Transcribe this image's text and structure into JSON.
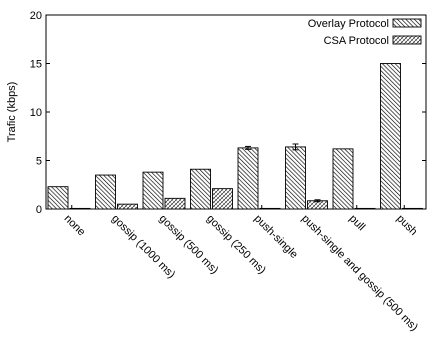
{
  "chart_data": {
    "type": "bar",
    "title": "",
    "xlabel": "",
    "ylabel": "Trafic (kbps)",
    "ylim": [
      0,
      20
    ],
    "yticks": [
      0,
      5,
      10,
      15,
      20
    ],
    "grid": false,
    "legend_position": "top-right",
    "categories": [
      "none",
      "gossip (1000 ms)",
      "gossip (500 ms)",
      "gossip (250 ms)",
      "push-single",
      "push-single and gossip (500 ms)",
      "pull",
      "push"
    ],
    "series": [
      {
        "name": "Overlay Protocol",
        "pattern": "dense-diagonal-hatch",
        "values": [
          2.3,
          3.5,
          3.8,
          4.1,
          6.3,
          6.4,
          6.2,
          15.0
        ],
        "error": [
          0,
          0,
          0,
          0,
          0.15,
          0.3,
          0,
          0
        ]
      },
      {
        "name": "CSA Protocol",
        "pattern": "sparse-crosshatch",
        "values": [
          0.05,
          0.5,
          1.1,
          2.1,
          0.05,
          0.85,
          0.05,
          0.05
        ],
        "error": [
          0,
          0,
          0,
          0,
          0,
          0.1,
          0,
          0
        ]
      }
    ]
  }
}
